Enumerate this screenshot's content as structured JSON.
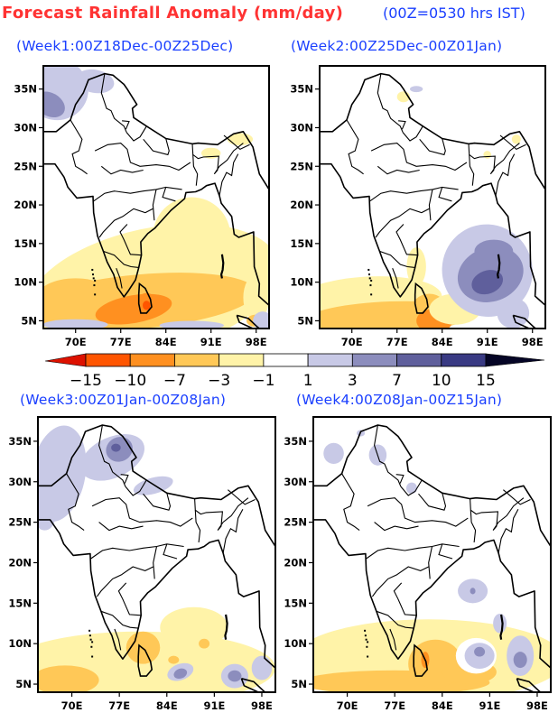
{
  "header": {
    "title": "Forecast Rainfall Anomaly (mm/day)",
    "time_note": "(00Z=0530 hrs IST)"
  },
  "axes": {
    "lon_ticks": [
      "70E",
      "77E",
      "84E",
      "91E",
      "98E"
    ],
    "lon_values": [
      70,
      77,
      84,
      91,
      98
    ],
    "lat_ticks": [
      "5N",
      "10N",
      "15N",
      "20N",
      "25N",
      "30N",
      "35N"
    ],
    "lat_values": [
      5,
      10,
      15,
      20,
      25,
      30,
      35
    ],
    "lon_range": [
      65,
      100
    ],
    "lat_range": [
      4,
      38
    ]
  },
  "panels": [
    {
      "id": "week1",
      "title": "(Week1:00Z18Dec-00Z25Dec)",
      "summary": "Negative anomaly over Bay of Bengal, south peninsula and Sri Lanka; positive anomaly in far north-west and near Sumatra"
    },
    {
      "id": "week2",
      "title": "(Week2:00Z25Dec-00Z01Jan)",
      "summary": "Positive anomaly over central/south Bay of Bengal; negative anomaly over equatorial Indian Ocean south of India"
    },
    {
      "id": "week3",
      "title": "(Week3:00Z01Jan-00Z08Jan)",
      "summary": "Positive anomaly over north-west India, J&K and Himalayas; weak negative anomaly over southern ocean"
    },
    {
      "id": "week4",
      "title": "(Week4:00Z08Jan-00Z15Jan)",
      "summary": "Weak positive patches over Bay of Bengal and north; negative anomaly over Arabian Sea south and Sri Lanka"
    }
  ],
  "colorbar": {
    "labels": [
      "-15",
      "-10",
      "-7",
      "-3",
      "-1",
      "1",
      "3",
      "7",
      "10",
      "15"
    ],
    "levels": [
      -15,
      -10,
      -7,
      -3,
      -1,
      1,
      3,
      7,
      10,
      15
    ],
    "colors": [
      "#dd1100",
      "#ff5500",
      "#ff9020",
      "#ffc857",
      "#fff3a8",
      "#ffffff",
      "#c8c9e6",
      "#8c8dbd",
      "#5f5f9c",
      "#393a83",
      "#050526"
    ]
  }
}
